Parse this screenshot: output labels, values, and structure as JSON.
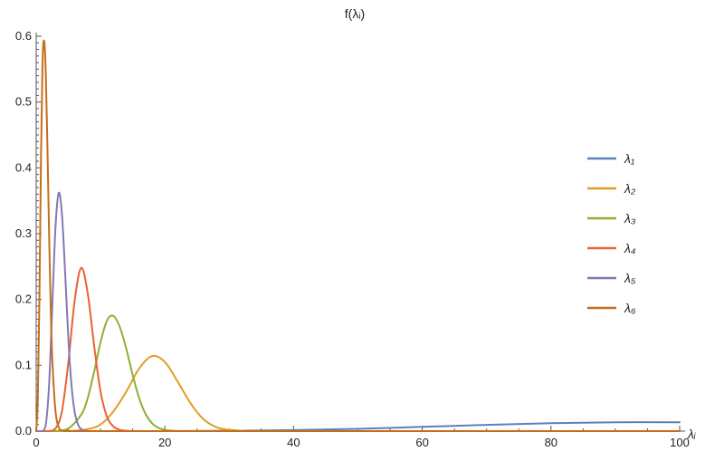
{
  "chart_data": {
    "type": "line",
    "title": "f(λᵢ)",
    "xlabel": "λᵢ",
    "ylabel": "",
    "xlim": [
      0,
      100
    ],
    "ylim": [
      0,
      0.6
    ],
    "x_ticks": [
      0,
      20,
      40,
      60,
      80,
      100
    ],
    "y_ticks": [
      0.0,
      0.1,
      0.2,
      0.3,
      0.4,
      0.5,
      0.6
    ],
    "x_tick_labels": [
      "0",
      "20",
      "40",
      "60",
      "80",
      "100"
    ],
    "y_tick_labels": [
      "0.0",
      "0.1",
      "0.2",
      "0.3",
      "0.4",
      "0.5",
      "0.6"
    ],
    "grid": false,
    "legend_position": "right",
    "series": [
      {
        "name": "λ₁",
        "color": "#5E81B5",
        "x": [
          0,
          20,
          30,
          40,
          50,
          60,
          70,
          80,
          90,
          100
        ],
        "y": [
          0,
          0,
          0.0005,
          0.0015,
          0.0035,
          0.0065,
          0.0095,
          0.012,
          0.0135,
          0.0135
        ]
      },
      {
        "name": "λ₂",
        "color": "#E19C24",
        "x": [
          5,
          8,
          10,
          12,
          14,
          16,
          18,
          20,
          22,
          24,
          26,
          28,
          30,
          33
        ],
        "y": [
          0,
          0.003,
          0.01,
          0.03,
          0.06,
          0.095,
          0.114,
          0.105,
          0.075,
          0.042,
          0.018,
          0.006,
          0.002,
          0
        ]
      },
      {
        "name": "λ₃",
        "color": "#8FB032",
        "x": [
          3,
          5,
          7,
          8,
          9,
          10,
          11,
          12,
          13,
          14,
          15,
          16,
          17,
          18,
          19,
          20,
          22
        ],
        "y": [
          0,
          0.004,
          0.025,
          0.05,
          0.09,
          0.135,
          0.168,
          0.175,
          0.158,
          0.125,
          0.085,
          0.05,
          0.026,
          0.012,
          0.005,
          0.002,
          0
        ]
      },
      {
        "name": "λ₄",
        "color": "#EB6235",
        "x": [
          2,
          3,
          4,
          5,
          6,
          7,
          8,
          9,
          10,
          11,
          12,
          13,
          14,
          15
        ],
        "y": [
          0,
          0.004,
          0.03,
          0.105,
          0.2,
          0.248,
          0.21,
          0.13,
          0.06,
          0.022,
          0.007,
          0.002,
          0.0005,
          0
        ]
      },
      {
        "name": "λ₅",
        "color": "#8778B3",
        "x": [
          1,
          1.5,
          2,
          2.5,
          3,
          3.5,
          4,
          4.5,
          5,
          5.5,
          6,
          6.5,
          7,
          8
        ],
        "y": [
          0,
          0.01,
          0.07,
          0.19,
          0.31,
          0.362,
          0.33,
          0.24,
          0.14,
          0.068,
          0.028,
          0.01,
          0.003,
          0
        ]
      },
      {
        "name": "λ₆",
        "color": "#C56E1A",
        "x": [
          0,
          0.25,
          0.5,
          0.75,
          1,
          1.25,
          1.5,
          1.75,
          2,
          2.25,
          2.5,
          3,
          3.5,
          4,
          5
        ],
        "y": [
          0,
          0.05,
          0.2,
          0.42,
          0.565,
          0.592,
          0.54,
          0.43,
          0.3,
          0.19,
          0.11,
          0.03,
          0.006,
          0.001,
          0
        ]
      }
    ]
  }
}
